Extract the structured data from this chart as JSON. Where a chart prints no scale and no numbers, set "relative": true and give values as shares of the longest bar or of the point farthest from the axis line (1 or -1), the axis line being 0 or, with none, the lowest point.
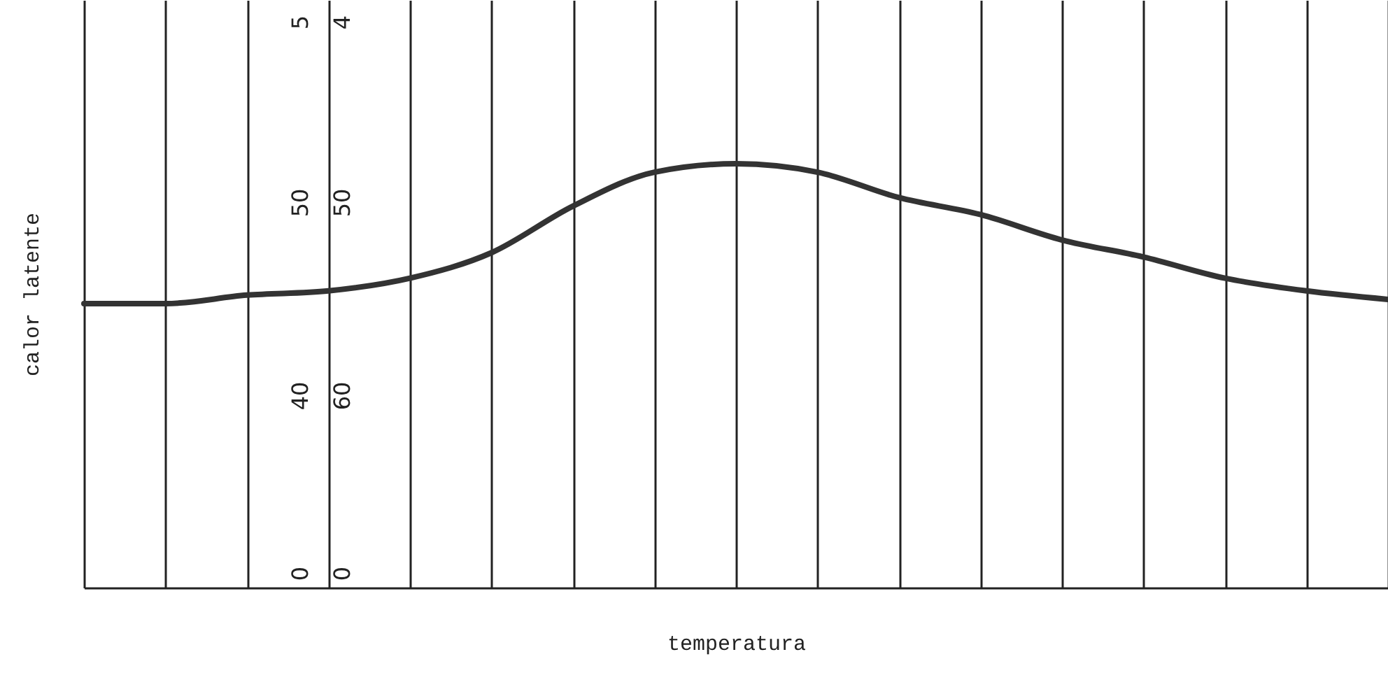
{
  "chart_data": {
    "type": "line",
    "xlabel": "temperatura",
    "ylabel": "calor latente",
    "relative": true,
    "grid": "x",
    "marker": "none",
    "line_style": "solid",
    "categories": [
      null,
      null,
      null,
      null,
      null,
      null,
      null,
      null,
      null,
      null,
      null,
      null,
      null,
      null,
      null,
      null,
      null
    ],
    "series": [
      {
        "color": "#333333",
        "values": [
          0.67,
          0.67,
          0.69,
          0.7,
          0.73,
          0.79,
          0.9,
          0.98,
          1.0,
          0.98,
          0.92,
          0.88,
          0.82,
          0.78,
          0.73,
          0.7,
          0.68
        ]
      }
    ],
    "annotations": [
      "5",
      "50",
      "40",
      "0",
      "4",
      "50",
      "60",
      "0"
    ]
  }
}
